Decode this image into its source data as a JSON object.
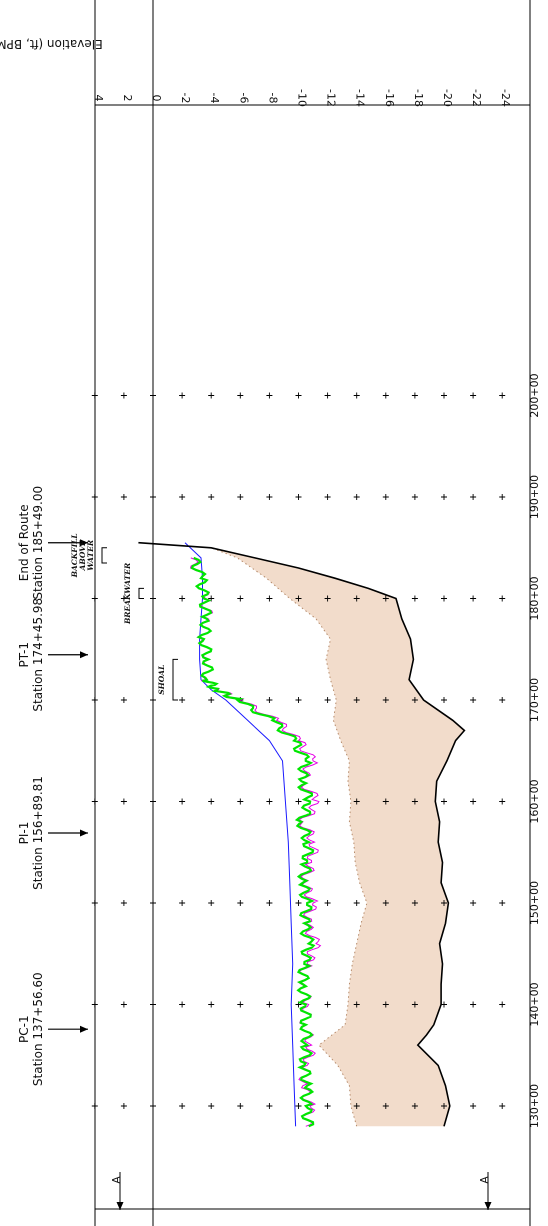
{
  "chart_data": {
    "type": "line",
    "title": "",
    "ylabel": "Elevation (ft, BPMSL)",
    "y_ticks": [
      "4",
      "2",
      "0",
      "-2",
      "-4",
      "-6",
      "-8",
      "-10",
      "-12",
      "-14",
      "-16",
      "-18",
      "-20",
      "-22",
      "-24"
    ],
    "x_ticks": [
      "130+00",
      "140+00",
      "150+00",
      "160+00",
      "170+00",
      "180+00",
      "190+00",
      "200+00"
    ],
    "annotations": {
      "stations": [
        {
          "name": "PC-1",
          "station": "Station 137+56.60",
          "value": 137.566
        },
        {
          "name": "PI-1",
          "station": "Station 156+89.81",
          "value": 156.8981
        },
        {
          "name": "PT-1",
          "station": "Station 174+45.98",
          "value": 174.4598
        },
        {
          "name": "End of Route",
          "station": "Station 185+49.00",
          "value": 185.49
        }
      ],
      "section_markers": [
        "A",
        "A"
      ],
      "features": [
        {
          "label": "SHOAL",
          "from": 170,
          "to": 174
        },
        {
          "label": "BREAKWATER",
          "from": 180,
          "to": 181
        },
        {
          "label": "BACKFILL ABOVE WATER",
          "from": 183.5,
          "to": 185
        }
      ]
    },
    "series": [
      {
        "color": "#1a1aff",
        "x": [
          128,
          132,
          136,
          140,
          144,
          148,
          152,
          156,
          160,
          164,
          166,
          168,
          170,
          171,
          172,
          174,
          176,
          178,
          180,
          182,
          184,
          185.5
        ],
        "y": [
          -9.8,
          -9.7,
          -9.6,
          -9.5,
          -9.6,
          -9.5,
          -9.4,
          -9.3,
          -9.1,
          -8.9,
          -8.0,
          -6.5,
          -5.0,
          -4.0,
          -3.3,
          -3.2,
          -3.2,
          -3.3,
          -3.4,
          -3.4,
          -3.3,
          -2.2
        ]
      },
      {
        "color": "#e600e6",
        "x": [
          128,
          130,
          132,
          134,
          136,
          138,
          140,
          142,
          144,
          146,
          148,
          150,
          152,
          154,
          156,
          158,
          160,
          162,
          164,
          166,
          168,
          170,
          171,
          172,
          174,
          176,
          178,
          180,
          182,
          184
        ],
        "y": [
          -10.5,
          -10.8,
          -10.3,
          -10.6,
          -10.9,
          -10.4,
          -10.7,
          -10.2,
          -10.6,
          -11.2,
          -10.5,
          -11.0,
          -10.4,
          -10.9,
          -11.1,
          -10.3,
          -11.4,
          -10.2,
          -11.0,
          -10.0,
          -8.5,
          -6.0,
          -4.5,
          -3.6,
          -3.9,
          -3.4,
          -3.8,
          -3.6,
          -3.3,
          -2.6
        ]
      },
      {
        "color": "#00e600",
        "x": [
          128,
          130,
          132,
          134,
          136,
          138,
          140,
          142,
          144,
          146,
          148,
          150,
          152,
          154,
          156,
          158,
          160,
          162,
          164,
          166,
          168,
          170,
          171,
          172,
          174,
          176,
          178,
          180,
          182,
          184
        ],
        "y": [
          -10.7,
          -10.5,
          -10.6,
          -10.4,
          -10.6,
          -10.5,
          -10.5,
          -10.3,
          -10.4,
          -10.7,
          -10.4,
          -10.6,
          -10.3,
          -10.6,
          -10.7,
          -10.2,
          -10.8,
          -10.2,
          -10.5,
          -9.7,
          -8.2,
          -5.8,
          -4.4,
          -3.7,
          -3.8,
          -3.5,
          -3.7,
          -3.5,
          -3.3,
          -2.8
        ]
      },
      {
        "color": "#000000",
        "x": [
          128,
          130,
          132,
          134,
          136,
          137,
          138,
          140,
          142,
          144,
          146,
          148,
          150,
          152,
          154,
          156,
          158,
          160,
          162,
          164,
          166,
          167,
          168,
          170,
          172,
          174,
          176,
          178,
          180,
          181,
          182,
          183,
          184,
          185,
          185.5
        ],
        "y": [
          -20.0,
          -20.4,
          -20.1,
          -19.6,
          -18.2,
          -18.8,
          -19.3,
          -19.8,
          -19.8,
          -19.9,
          -19.7,
          -20.1,
          -20.3,
          -19.8,
          -19.9,
          -19.6,
          -19.7,
          -19.4,
          -19.5,
          -20.2,
          -20.8,
          -21.4,
          -20.6,
          -18.6,
          -17.6,
          -17.9,
          -17.7,
          -17.1,
          -16.7,
          -14.8,
          -12.5,
          -10.0,
          -7.0,
          -4.0,
          1.0
        ]
      },
      {
        "color": "#e8c0a0",
        "x": [
          128,
          130,
          132,
          134,
          136,
          138,
          140,
          142,
          144,
          146,
          148,
          150,
          152,
          154,
          156,
          158,
          160,
          162,
          164,
          166,
          168,
          170,
          172,
          174,
          176,
          178,
          180,
          182,
          184,
          185
        ],
        "y": [
          -14.0,
          -13.6,
          -13.5,
          -12.7,
          -11.4,
          -13.2,
          -13.4,
          -13.5,
          -13.7,
          -14.0,
          -14.3,
          -14.7,
          -14.2,
          -13.9,
          -13.8,
          -13.5,
          -13.6,
          -13.4,
          -13.5,
          -12.9,
          -12.4,
          -12.6,
          -12.2,
          -11.9,
          -12.2,
          -11.2,
          -9.4,
          -7.8,
          -5.8,
          -4.0
        ]
      }
    ]
  }
}
